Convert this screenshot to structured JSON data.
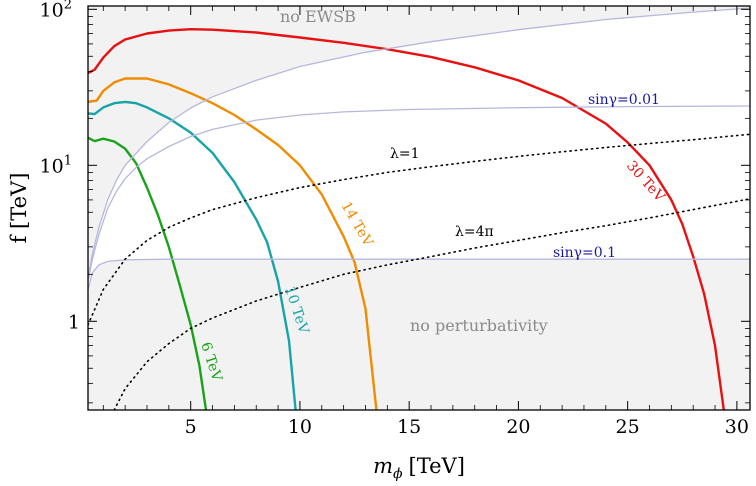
{
  "chart_data": {
    "type": "line",
    "title": "",
    "xlabel": "m",
    "xlabel_sub": "ϕ",
    "xlabel_unit": "[TeV]",
    "ylabel": "f [TeV]",
    "xlim": [
      0.3,
      30.6
    ],
    "ylim": [
      0.27,
      105
    ],
    "yscale": "log",
    "grid": false,
    "x_ticks": [
      {
        "v": 5,
        "label": "5"
      },
      {
        "v": 10,
        "label": "10"
      },
      {
        "v": 15,
        "label": "15"
      },
      {
        "v": 20,
        "label": "20"
      },
      {
        "v": 25,
        "label": "25"
      },
      {
        "v": 30,
        "label": "30"
      }
    ],
    "y_ticks": [
      {
        "v": 1,
        "label": "1",
        "sup": ""
      },
      {
        "v": 10,
        "label": "10",
        "sup": "1"
      },
      {
        "v": 100,
        "label": "10",
        "sup": "2"
      }
    ],
    "regions": [
      {
        "name": "no EWSB",
        "color": "#f2f2f2"
      },
      {
        "name": "no perturbativity",
        "color": "#f2f2f2"
      }
    ],
    "series": [
      {
        "name": "6 TeV",
        "color": "#1aa31a",
        "points": [
          [
            0.3,
            15
          ],
          [
            0.6,
            14.3
          ],
          [
            1.0,
            14.8
          ],
          [
            1.5,
            14.2
          ],
          [
            2.0,
            12.8
          ],
          [
            2.5,
            10.3
          ],
          [
            3.0,
            7.2
          ],
          [
            3.5,
            4.8
          ],
          [
            4.0,
            3.0
          ],
          [
            4.5,
            1.7
          ],
          [
            5.0,
            0.95
          ],
          [
            5.4,
            0.52
          ],
          [
            5.7,
            0.27
          ]
        ]
      },
      {
        "name": "10 TeV",
        "color": "#17a3a8",
        "points": [
          [
            0.3,
            21.5
          ],
          [
            0.6,
            21.3
          ],
          [
            1.0,
            23.5
          ],
          [
            1.5,
            25
          ],
          [
            2.0,
            25.5
          ],
          [
            2.5,
            25
          ],
          [
            3.0,
            23.5
          ],
          [
            4.0,
            20
          ],
          [
            5.0,
            16.2
          ],
          [
            6.0,
            12
          ],
          [
            7.0,
            7.8
          ],
          [
            8.0,
            4.5
          ],
          [
            8.5,
            3.2
          ],
          [
            9.0,
            1.8
          ],
          [
            9.5,
            0.75
          ],
          [
            9.8,
            0.27
          ]
        ]
      },
      {
        "name": "14 TeV",
        "color": "#f08c00",
        "points": [
          [
            0.3,
            25.5
          ],
          [
            0.7,
            26
          ],
          [
            1.0,
            30
          ],
          [
            1.5,
            34
          ],
          [
            2.0,
            36
          ],
          [
            3.0,
            36
          ],
          [
            4.0,
            33
          ],
          [
            5.0,
            29
          ],
          [
            6.0,
            25
          ],
          [
            7.0,
            21
          ],
          [
            8.0,
            17
          ],
          [
            9.0,
            13.5
          ],
          [
            10.0,
            10
          ],
          [
            11.0,
            6.5
          ],
          [
            12.0,
            3.5
          ],
          [
            12.5,
            2.4
          ],
          [
            13.0,
            1.2
          ],
          [
            13.5,
            0.27
          ]
        ]
      },
      {
        "name": "30 TeV",
        "color": "#e81010",
        "points": [
          [
            0.3,
            39
          ],
          [
            0.6,
            41
          ],
          [
            1.0,
            49
          ],
          [
            1.5,
            58
          ],
          [
            2.0,
            64
          ],
          [
            3.0,
            70
          ],
          [
            4.0,
            73
          ],
          [
            5.0,
            74.5
          ],
          [
            6.0,
            74
          ],
          [
            8.0,
            71
          ],
          [
            10.0,
            66
          ],
          [
            12.0,
            61
          ],
          [
            14.0,
            55.5
          ],
          [
            16.0,
            49.5
          ],
          [
            18.0,
            42.5
          ],
          [
            20.0,
            35
          ],
          [
            22.0,
            27
          ],
          [
            24.0,
            18.5
          ],
          [
            25.0,
            14
          ],
          [
            26.0,
            10
          ],
          [
            27.0,
            6
          ],
          [
            27.5,
            4.2
          ],
          [
            28.0,
            2.6
          ],
          [
            28.5,
            1.5
          ],
          [
            29.0,
            0.7
          ],
          [
            29.4,
            0.27
          ]
        ]
      },
      {
        "name": "sinγ=0.01 (lower)",
        "color": "#b7b7de",
        "points": [
          [
            0.3,
            1.8
          ],
          [
            0.5,
            2.5
          ],
          [
            0.8,
            3.6
          ],
          [
            1.2,
            5.3
          ],
          [
            1.6,
            6.8
          ],
          [
            2.0,
            8.2
          ],
          [
            2.5,
            9.7
          ],
          [
            3.0,
            11
          ],
          [
            4.0,
            13.2
          ],
          [
            5.0,
            15.3
          ],
          [
            6.0,
            17
          ],
          [
            8.0,
            19.5
          ],
          [
            10.0,
            21
          ],
          [
            12.0,
            22
          ],
          [
            15.0,
            22.8
          ],
          [
            20.0,
            23.4
          ],
          [
            25.0,
            23.8
          ],
          [
            30.6,
            24
          ]
        ]
      },
      {
        "name": "sinγ=0.01 (upper)",
        "color": "#b7b7de",
        "points": [
          [
            0.3,
            1.9
          ],
          [
            0.5,
            2.7
          ],
          [
            0.8,
            4
          ],
          [
            1.2,
            6
          ],
          [
            1.6,
            8
          ],
          [
            2.0,
            10
          ],
          [
            3.0,
            14.2
          ],
          [
            4.0,
            18.8
          ],
          [
            5.0,
            23.3
          ],
          [
            6.0,
            27.5
          ],
          [
            8.0,
            35
          ],
          [
            10.0,
            43
          ],
          [
            13.0,
            53
          ],
          [
            16.0,
            62
          ],
          [
            20.0,
            74
          ],
          [
            24.0,
            86
          ],
          [
            28.0,
            96
          ],
          [
            30.6,
            102
          ]
        ]
      },
      {
        "name": "sinγ=0.1",
        "color": "#b7b7de",
        "points": [
          [
            0.3,
            1.6
          ],
          [
            0.5,
            2.05
          ],
          [
            0.8,
            2.3
          ],
          [
            1.2,
            2.42
          ],
          [
            2.0,
            2.48
          ],
          [
            4.0,
            2.5
          ],
          [
            10.0,
            2.5
          ],
          [
            20.0,
            2.5
          ],
          [
            30.6,
            2.5
          ]
        ]
      },
      {
        "name": "λ=1",
        "color": "#000000",
        "dotted": true,
        "points": [
          [
            0.3,
            0.95
          ],
          [
            1.0,
            1.6
          ],
          [
            2.0,
            2.5
          ],
          [
            3.0,
            3.3
          ],
          [
            4.0,
            4.0
          ],
          [
            5.0,
            4.6
          ],
          [
            6.0,
            5.2
          ],
          [
            8.0,
            6.2
          ],
          [
            10.0,
            7.2
          ],
          [
            12.0,
            8.1
          ],
          [
            14.0,
            9.0
          ],
          [
            16.0,
            9.8
          ],
          [
            18.0,
            10.6
          ],
          [
            20.0,
            11.4
          ],
          [
            22.0,
            12.2
          ],
          [
            24.0,
            13.0
          ],
          [
            26.0,
            13.8
          ],
          [
            28.0,
            14.6
          ],
          [
            30.6,
            15.8
          ]
        ]
      },
      {
        "name": "λ=4π",
        "color": "#000000",
        "dotted": true,
        "points": [
          [
            1.5,
            0.27
          ],
          [
            2.0,
            0.37
          ],
          [
            3.0,
            0.55
          ],
          [
            4.0,
            0.72
          ],
          [
            5.0,
            0.9
          ],
          [
            6.0,
            1.05
          ],
          [
            8.0,
            1.35
          ],
          [
            10.0,
            1.65
          ],
          [
            12.0,
            2.0
          ],
          [
            14.0,
            2.3
          ],
          [
            16.0,
            2.6
          ],
          [
            18.0,
            2.95
          ],
          [
            20.0,
            3.3
          ],
          [
            22.0,
            3.7
          ],
          [
            24.0,
            4.1
          ],
          [
            26.0,
            4.6
          ],
          [
            28.0,
            5.2
          ],
          [
            30.6,
            6.1
          ]
        ]
      }
    ],
    "annotations": [
      {
        "text": "sinγ=0.01",
        "color": "#1a1aa0"
      },
      {
        "text": "sinγ=0.1",
        "color": "#1a1aa0"
      },
      {
        "text": "λ=1",
        "color": "#000000"
      },
      {
        "text": "λ=4π",
        "color": "#000000"
      }
    ],
    "curve_labels": [
      {
        "text": "6 TeV",
        "color": "#1aa31a"
      },
      {
        "text": "10 TeV",
        "color": "#17a3a8"
      },
      {
        "text": "14 TeV",
        "color": "#f08c00"
      },
      {
        "text": "30 TeV",
        "color": "#e81010"
      }
    ]
  }
}
